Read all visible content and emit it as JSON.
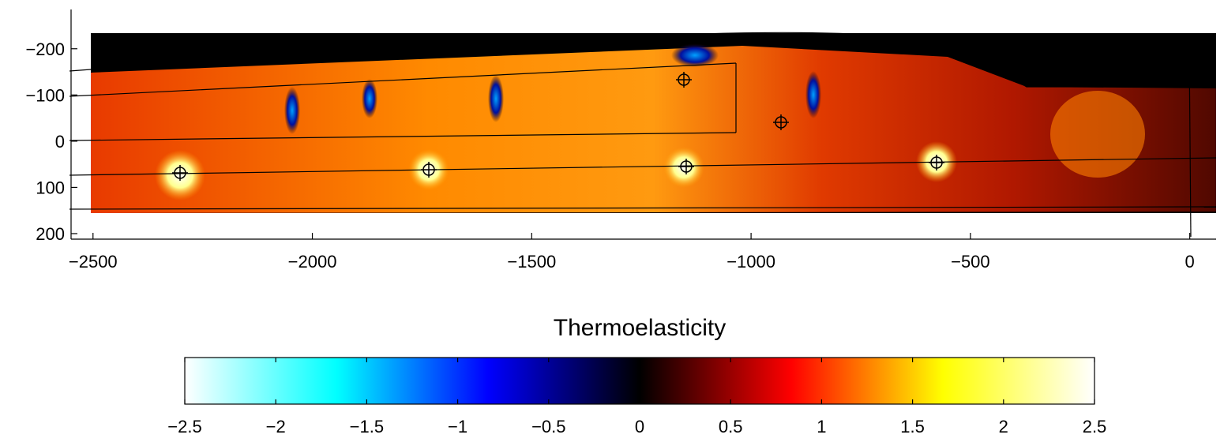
{
  "chart_data": {
    "type": "image",
    "xlim": [
      -2550,
      60
    ],
    "xticks": [
      {
        "value": -2500,
        "label": "−2500"
      },
      {
        "value": -2000,
        "label": "−2000"
      },
      {
        "value": -1500,
        "label": "−1500"
      },
      {
        "value": -1000,
        "label": "−1000"
      },
      {
        "value": -500,
        "label": "−500"
      },
      0
    ],
    "ylim": [
      -285,
      212
    ],
    "yticks": [
      {
        "value": -200,
        "label": "−200"
      },
      {
        "value": -100,
        "label": "−100"
      },
      0,
      100,
      200
    ],
    "colorbar": {
      "title": "Thermoelasticity",
      "clim": [
        -2.5,
        2.5
      ],
      "ticks": [
        {
          "value": -2.5,
          "label": "−2.5"
        },
        {
          "value": -2,
          "label": "−2"
        },
        {
          "value": -1.5,
          "label": "−1.5"
        },
        {
          "value": -1,
          "label": "−1"
        },
        {
          "value": -0.5,
          "label": "−0.5"
        },
        0,
        0.5,
        1,
        1.5,
        2,
        2.5
      ],
      "colormap": [
        "#ffffff",
        "#00ffff",
        "#0000ff",
        "#000000",
        "#ff0000",
        "#ffff00",
        "#ffffff"
      ]
    }
  }
}
